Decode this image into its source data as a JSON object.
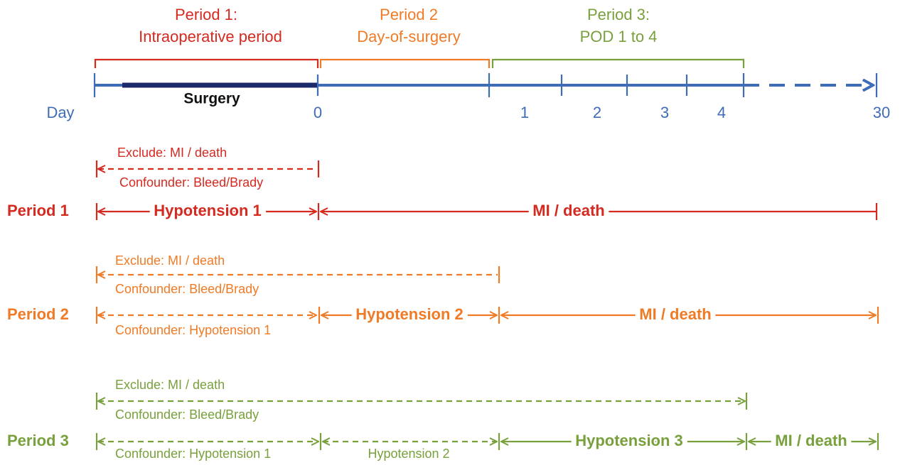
{
  "header": {
    "periods": [
      {
        "line1": "Period 1:",
        "line2": "Intraoperative period"
      },
      {
        "line1": "Period 2",
        "line2": "Day-of-surgery"
      },
      {
        "line1": "Period 3:",
        "line2": "POD 1 to 4"
      }
    ]
  },
  "timeline": {
    "day_label": "Day",
    "surgery": "Surgery",
    "ticks": [
      "0",
      "1",
      "2",
      "3",
      "4",
      "30"
    ]
  },
  "rows": [
    {
      "label": "Period 1",
      "exclude": "Exclude: MI / death",
      "confounder": "Confounder: Bleed/Brady",
      "exposure": "Hypotension 1",
      "outcome": "MI / death"
    },
    {
      "label": "Period 2",
      "exclude": "Exclude: MI / death",
      "confounder": "Confounder: Bleed/Brady",
      "prior_confounder": "Confounder: Hypotension 1",
      "exposure": "Hypotension 2",
      "outcome": "MI / death"
    },
    {
      "label": "Period 3",
      "exclude": "Exclude: MI / death",
      "confounder": "Confounder: Bleed/Brady",
      "prior_confounder": "Confounder: Hypotension 1",
      "prior_confounder_2": "Hypotension 2",
      "exposure": "Hypotension 3",
      "outcome": "MI / death"
    }
  ]
}
